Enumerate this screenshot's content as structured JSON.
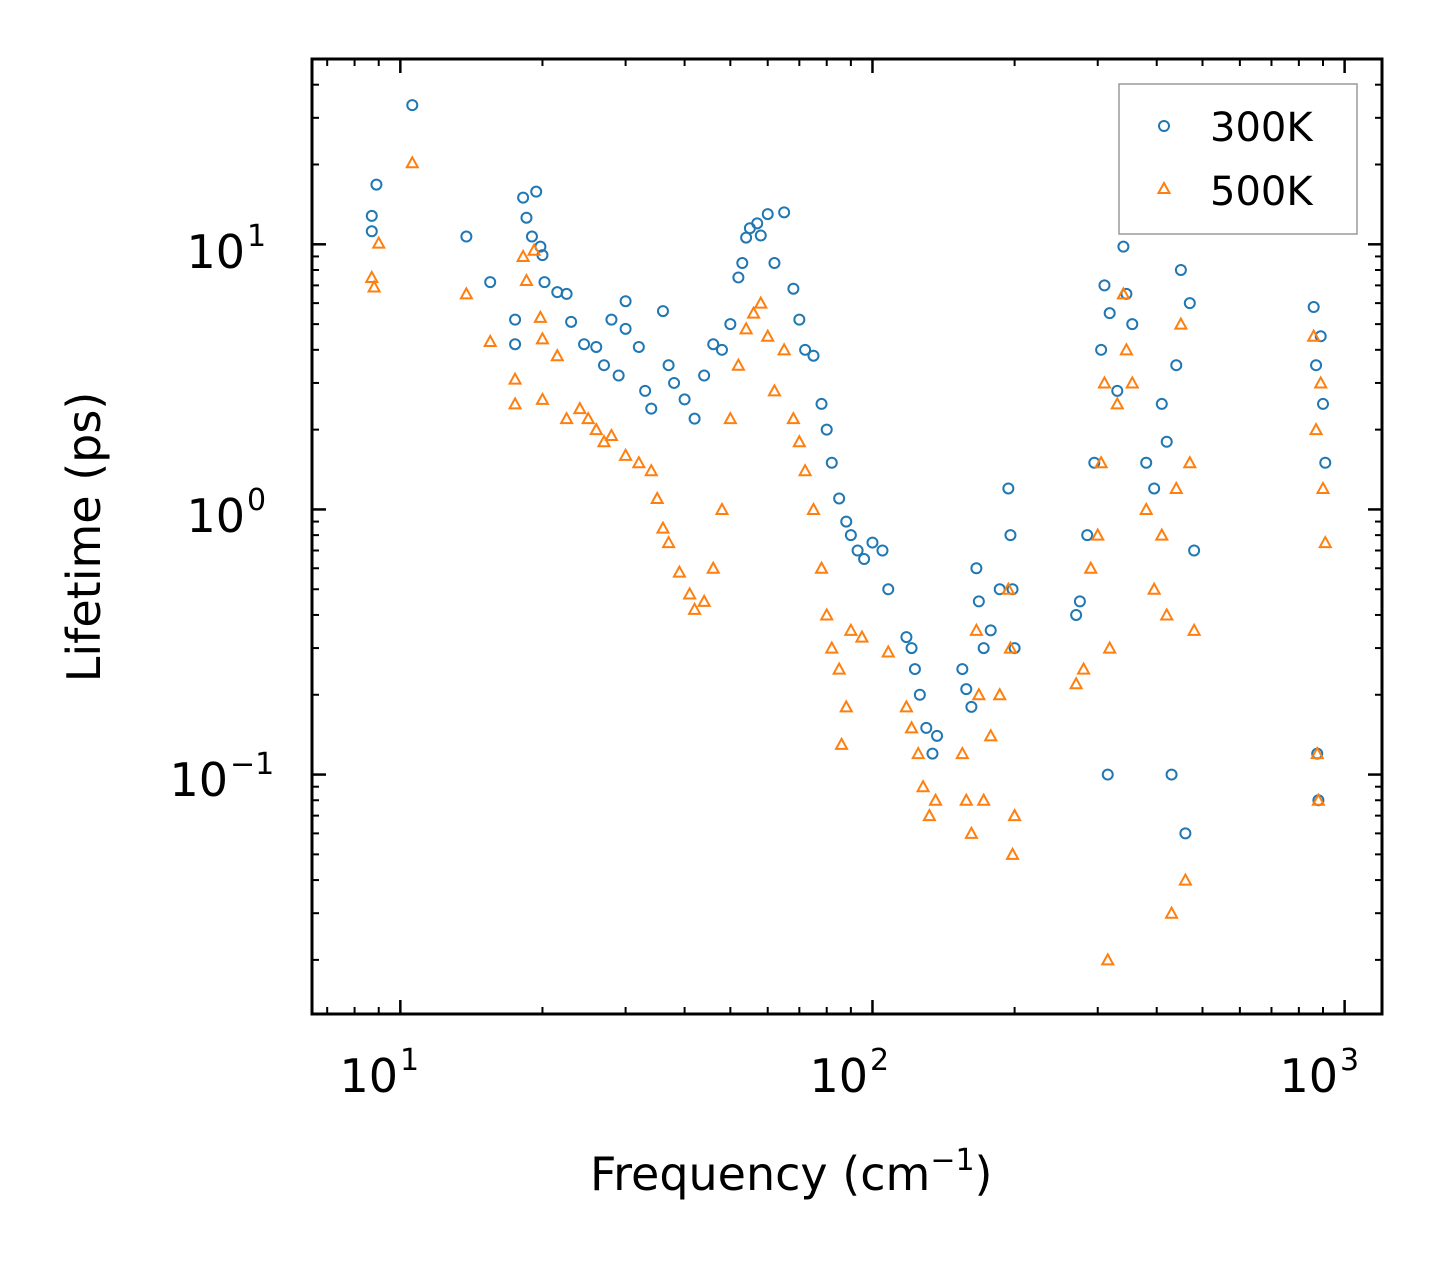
{
  "chart_data": {
    "type": "scatter",
    "xlabel_main": "Frequency (cm",
    "xlabel_exp": "−1",
    "xlabel_close": ")",
    "ylabel": "Lifetime (ps)",
    "xscale": "log",
    "yscale": "log",
    "xlim": [
      6.5,
      1200
    ],
    "ylim": [
      0.0125,
      50
    ],
    "legend_position": "top-right",
    "x_ticks": [
      {
        "base": "10",
        "exp": "1",
        "value": 10
      },
      {
        "base": "10",
        "exp": "2",
        "value": 100
      },
      {
        "base": "10",
        "exp": "3",
        "value": 1000
      }
    ],
    "y_ticks": [
      {
        "base": "10",
        "exp": "1",
        "value": 10
      },
      {
        "base": "10",
        "exp": "0",
        "value": 1
      },
      {
        "base": "10",
        "exp": "−1",
        "value": 0.1
      }
    ],
    "series": [
      {
        "name": "300K",
        "color": "#1f77b4",
        "marker": "circle",
        "points": [
          [
            8.7,
            12.8
          ],
          [
            8.7,
            11.2
          ],
          [
            8.9,
            16.8
          ],
          [
            10.6,
            33.5
          ],
          [
            13.8,
            10.7
          ],
          [
            15.5,
            7.2
          ],
          [
            17.5,
            5.2
          ],
          [
            17.5,
            4.2
          ],
          [
            18.2,
            15
          ],
          [
            18.5,
            12.6
          ],
          [
            19.0,
            10.7
          ],
          [
            19.4,
            15.8
          ],
          [
            19.8,
            9.8
          ],
          [
            20.0,
            9.1
          ],
          [
            20.2,
            7.2
          ],
          [
            21.5,
            6.6
          ],
          [
            22.5,
            6.5
          ],
          [
            23.0,
            5.1
          ],
          [
            24.5,
            4.2
          ],
          [
            26,
            4.1
          ],
          [
            27,
            3.5
          ],
          [
            28,
            5.2
          ],
          [
            29,
            3.2
          ],
          [
            30,
            6.1
          ],
          [
            30,
            4.8
          ],
          [
            32,
            4.1
          ],
          [
            33,
            2.8
          ],
          [
            34,
            2.4
          ],
          [
            36,
            5.6
          ],
          [
            37,
            3.5
          ],
          [
            38,
            3.0
          ],
          [
            40,
            2.6
          ],
          [
            42,
            2.2
          ],
          [
            44,
            3.2
          ],
          [
            46,
            4.2
          ],
          [
            48,
            4.0
          ],
          [
            50,
            5.0
          ],
          [
            52,
            7.5
          ],
          [
            53,
            8.5
          ],
          [
            54,
            10.6
          ],
          [
            55,
            11.5
          ],
          [
            57,
            12.0
          ],
          [
            58,
            10.8
          ],
          [
            60,
            13.0
          ],
          [
            62,
            8.5
          ],
          [
            65,
            13.2
          ],
          [
            68,
            6.8
          ],
          [
            70,
            5.2
          ],
          [
            72,
            4.0
          ],
          [
            75,
            3.8
          ],
          [
            78,
            2.5
          ],
          [
            80,
            2.0
          ],
          [
            82,
            1.5
          ],
          [
            85,
            1.1
          ],
          [
            88,
            0.9
          ],
          [
            90,
            0.8
          ],
          [
            93,
            0.7
          ],
          [
            96,
            0.65
          ],
          [
            100,
            0.75
          ],
          [
            105,
            0.7
          ],
          [
            108,
            0.5
          ],
          [
            118,
            0.33
          ],
          [
            121,
            0.3
          ],
          [
            123,
            0.25
          ],
          [
            126,
            0.2
          ],
          [
            130,
            0.15
          ],
          [
            134,
            0.12
          ],
          [
            137,
            0.14
          ],
          [
            155,
            0.25
          ],
          [
            158,
            0.21
          ],
          [
            162,
            0.18
          ],
          [
            166,
            0.6
          ],
          [
            168,
            0.45
          ],
          [
            172,
            0.3
          ],
          [
            178,
            0.35
          ],
          [
            186,
            0.5
          ],
          [
            194,
            1.2
          ],
          [
            196,
            0.8
          ],
          [
            198,
            0.5
          ],
          [
            200,
            0.3
          ],
          [
            270,
            0.4
          ],
          [
            275,
            0.45
          ],
          [
            285,
            0.8
          ],
          [
            295,
            1.5
          ],
          [
            305,
            4.0
          ],
          [
            310,
            7.0
          ],
          [
            315,
            0.1
          ],
          [
            318,
            5.5
          ],
          [
            330,
            2.8
          ],
          [
            340,
            9.8
          ],
          [
            345,
            6.5
          ],
          [
            355,
            5.0
          ],
          [
            380,
            1.5
          ],
          [
            395,
            1.2
          ],
          [
            410,
            2.5
          ],
          [
            420,
            1.8
          ],
          [
            430,
            0.1
          ],
          [
            440,
            3.5
          ],
          [
            450,
            8.0
          ],
          [
            460,
            0.06
          ],
          [
            470,
            6.0
          ],
          [
            480,
            0.7
          ],
          [
            860,
            5.8
          ],
          [
            870,
            3.5
          ],
          [
            875,
            0.12
          ],
          [
            880,
            0.08
          ],
          [
            890,
            4.5
          ],
          [
            900,
            2.5
          ],
          [
            910,
            1.5
          ]
        ]
      },
      {
        "name": "500K",
        "color": "#ff7f0e",
        "marker": "triangle",
        "points": [
          [
            8.7,
            7.5
          ],
          [
            8.8,
            6.9
          ],
          [
            9.0,
            10.1
          ],
          [
            10.6,
            20.3
          ],
          [
            13.8,
            6.5
          ],
          [
            15.5,
            4.3
          ],
          [
            17.5,
            3.1
          ],
          [
            17.5,
            2.5
          ],
          [
            18.2,
            9
          ],
          [
            18.5,
            7.3
          ],
          [
            19.2,
            9.5
          ],
          [
            19.8,
            5.3
          ],
          [
            20.0,
            4.4
          ],
          [
            20.0,
            2.6
          ],
          [
            21.5,
            3.8
          ],
          [
            22.5,
            2.2
          ],
          [
            24,
            2.4
          ],
          [
            25,
            2.2
          ],
          [
            26,
            2.0
          ],
          [
            27,
            1.8
          ],
          [
            28,
            1.9
          ],
          [
            30,
            1.6
          ],
          [
            32,
            1.5
          ],
          [
            34,
            1.4
          ],
          [
            35,
            1.1
          ],
          [
            36,
            0.85
          ],
          [
            37,
            0.75
          ],
          [
            39,
            0.58
          ],
          [
            41,
            0.48
          ],
          [
            42,
            0.42
          ],
          [
            44,
            0.45
          ],
          [
            46,
            0.6
          ],
          [
            48,
            1.0
          ],
          [
            50,
            2.2
          ],
          [
            52,
            3.5
          ],
          [
            54,
            4.8
          ],
          [
            56,
            5.5
          ],
          [
            58,
            6.0
          ],
          [
            60,
            4.5
          ],
          [
            62,
            2.8
          ],
          [
            65,
            4.0
          ],
          [
            68,
            2.2
          ],
          [
            70,
            1.8
          ],
          [
            72,
            1.4
          ],
          [
            75,
            1.0
          ],
          [
            78,
            0.6
          ],
          [
            80,
            0.4
          ],
          [
            82,
            0.3
          ],
          [
            85,
            0.25
          ],
          [
            86,
            0.13
          ],
          [
            88,
            0.18
          ],
          [
            90,
            0.35
          ],
          [
            95,
            0.33
          ],
          [
            108,
            0.29
          ],
          [
            118,
            0.18
          ],
          [
            121,
            0.15
          ],
          [
            125,
            0.12
          ],
          [
            128,
            0.09
          ],
          [
            132,
            0.07
          ],
          [
            136,
            0.08
          ],
          [
            155,
            0.12
          ],
          [
            158,
            0.08
          ],
          [
            162,
            0.06
          ],
          [
            166,
            0.35
          ],
          [
            168,
            0.2
          ],
          [
            172,
            0.08
          ],
          [
            178,
            0.14
          ],
          [
            186,
            0.2
          ],
          [
            194,
            0.5
          ],
          [
            196,
            0.3
          ],
          [
            198,
            0.05
          ],
          [
            200,
            0.07
          ],
          [
            270,
            0.22
          ],
          [
            280,
            0.25
          ],
          [
            290,
            0.6
          ],
          [
            300,
            0.8
          ],
          [
            305,
            1.5
          ],
          [
            310,
            3.0
          ],
          [
            315,
            0.02
          ],
          [
            318,
            0.3
          ],
          [
            330,
            2.5
          ],
          [
            340,
            6.5
          ],
          [
            345,
            4.0
          ],
          [
            355,
            3.0
          ],
          [
            380,
            1.0
          ],
          [
            395,
            0.5
          ],
          [
            410,
            0.8
          ],
          [
            420,
            0.4
          ],
          [
            430,
            0.03
          ],
          [
            440,
            1.2
          ],
          [
            450,
            5.0
          ],
          [
            460,
            0.04
          ],
          [
            470,
            1.5
          ],
          [
            480,
            0.35
          ],
          [
            860,
            4.5
          ],
          [
            870,
            2.0
          ],
          [
            875,
            0.12
          ],
          [
            880,
            0.08
          ],
          [
            890,
            3.0
          ],
          [
            900,
            1.2
          ],
          [
            910,
            0.75
          ]
        ]
      }
    ]
  }
}
